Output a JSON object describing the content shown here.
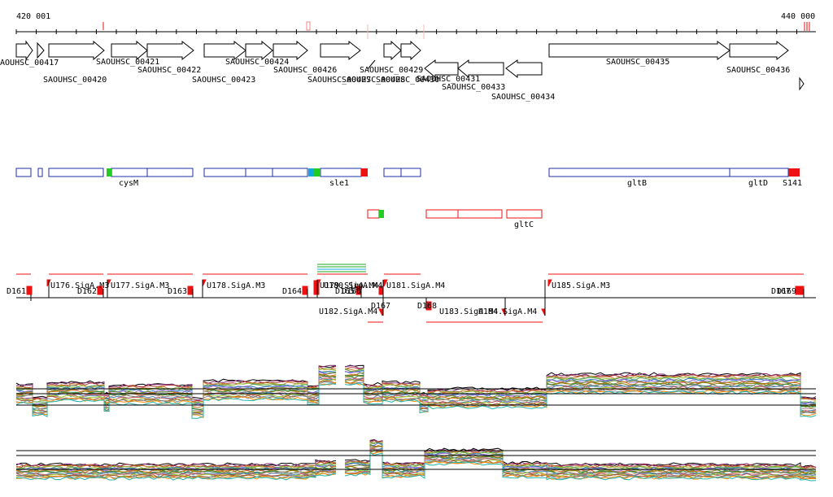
{
  "ruler": {
    "start_label": "420 001",
    "end_label": "440 000"
  },
  "genes": [
    {
      "label": "SAOUHSC_00417",
      "strand": "+"
    },
    {
      "label": "SAOUHSC_00420",
      "strand": "+"
    },
    {
      "label": "SAOUHSC_00421",
      "strand": "+"
    },
    {
      "label": "SAOUHSC_00422",
      "strand": "+"
    },
    {
      "label": "SAOUHSC_00423",
      "strand": "+"
    },
    {
      "label": "SAOUHSC_00424",
      "strand": "+"
    },
    {
      "label": "SAOUHSC_00426",
      "strand": "+"
    },
    {
      "label": "SAOUHSC_00427",
      "strand": "+"
    },
    {
      "label": "SAOUHSC_00428",
      "strand": "+"
    },
    {
      "label": "SAOUHSC_00429",
      "strand": "+"
    },
    {
      "label": "SAOUHSC_00430",
      "strand": "+"
    },
    {
      "label": "SAOUHSC_00431",
      "strand": "-"
    },
    {
      "label": "SAOUHSC_00433",
      "strand": "-"
    },
    {
      "label": "SAOUHSC_00434",
      "strand": "-"
    },
    {
      "label": "SAOUHSC_00435",
      "strand": "+"
    },
    {
      "label": "SAOUHSC_00436",
      "strand": "+"
    }
  ],
  "operon_labels": {
    "upper": [
      "cysM",
      "sle1",
      "gltB",
      "gltD",
      "S141"
    ],
    "lower": [
      "gltC"
    ]
  },
  "segments": {
    "downstream": [
      "D161",
      "D162",
      "D163",
      "D164",
      "D165",
      "D166",
      "D167",
      "D168",
      "D167",
      "D169"
    ],
    "upstream": [
      "U176.SigA.M3",
      "U177.SigA.M3",
      "U178.SigA.M3",
      "U179.SigA.M4",
      "U180.SigA.M4",
      "U181.SigA.M4",
      "U185.SigA.M3"
    ],
    "upstream_reverse": [
      "U182.SigA.M4",
      "U183.SigA.M4",
      "U184.SigA.M4"
    ]
  },
  "colors": {
    "gene_outline": "#000000",
    "operon_box": "#1f2fa8",
    "feature_red": "#ee1111",
    "feature_green": "#22cc22",
    "feature_cyan": "#11aadd"
  }
}
